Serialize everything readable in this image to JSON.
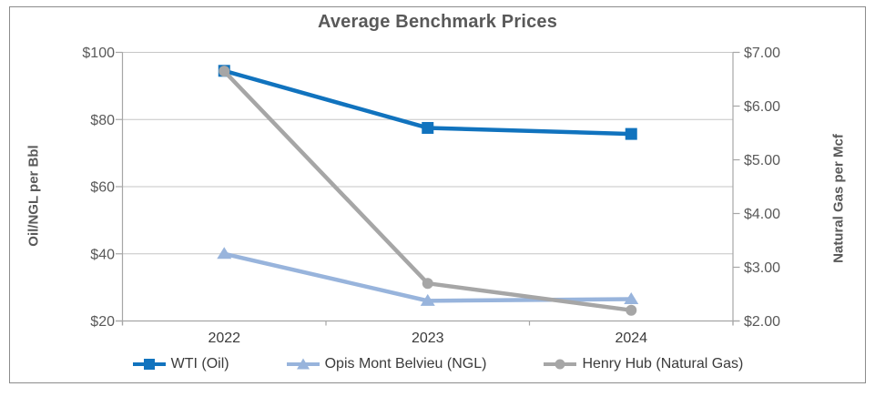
{
  "chart_data": {
    "type": "line",
    "title": "Average Benchmark Prices",
    "categories": [
      "2022",
      "2023",
      "2024"
    ],
    "series": [
      {
        "name": "WTI (Oil)",
        "axis": "left",
        "marker": "square",
        "color": "#1173BE",
        "values": [
          94.5,
          77.5,
          75.7
        ]
      },
      {
        "name": "Opis Mont Belvieu (NGL)",
        "axis": "left",
        "marker": "triangle",
        "color": "#98B4DC",
        "values": [
          40.0,
          26.0,
          26.5
        ]
      },
      {
        "name": "Henry Hub (Natural Gas)",
        "axis": "right",
        "marker": "circle",
        "color": "#A6A6A6",
        "values": [
          6.65,
          2.7,
          2.2
        ]
      }
    ],
    "left_axis": {
      "title": "Oil/NGL per Bbl",
      "min": 20,
      "max": 100,
      "ticks": [
        {
          "label": "$100",
          "value": 100
        },
        {
          "label": "$80",
          "value": 80
        },
        {
          "label": "$60",
          "value": 60
        },
        {
          "label": "$40",
          "value": 40
        },
        {
          "label": "$20",
          "value": 20
        }
      ]
    },
    "right_axis": {
      "title": "Natural Gas per Mcf",
      "min": 2,
      "max": 7,
      "ticks": [
        {
          "label": "$7.00",
          "value": 7
        },
        {
          "label": "$6.00",
          "value": 6
        },
        {
          "label": "$5.00",
          "value": 5
        },
        {
          "label": "$4.00",
          "value": 4
        },
        {
          "label": "$3.00",
          "value": 3
        },
        {
          "label": "$2.00",
          "value": 2
        }
      ]
    },
    "grid": true,
    "legend_position": "bottom",
    "style": {
      "accent_blue": "#1173BE",
      "accent_lightblue": "#98B4DC",
      "accent_gray": "#A6A6A6",
      "title_color": "#595959",
      "tick_label_color": "#595959",
      "category_label_color": "#3B3B3B",
      "legend_label_color": "#3B3B3B",
      "gridline_color": "#C6C6C6",
      "axis_line_color": "#A6A6A6",
      "frame_border_color": "#8C8C8C"
    }
  }
}
